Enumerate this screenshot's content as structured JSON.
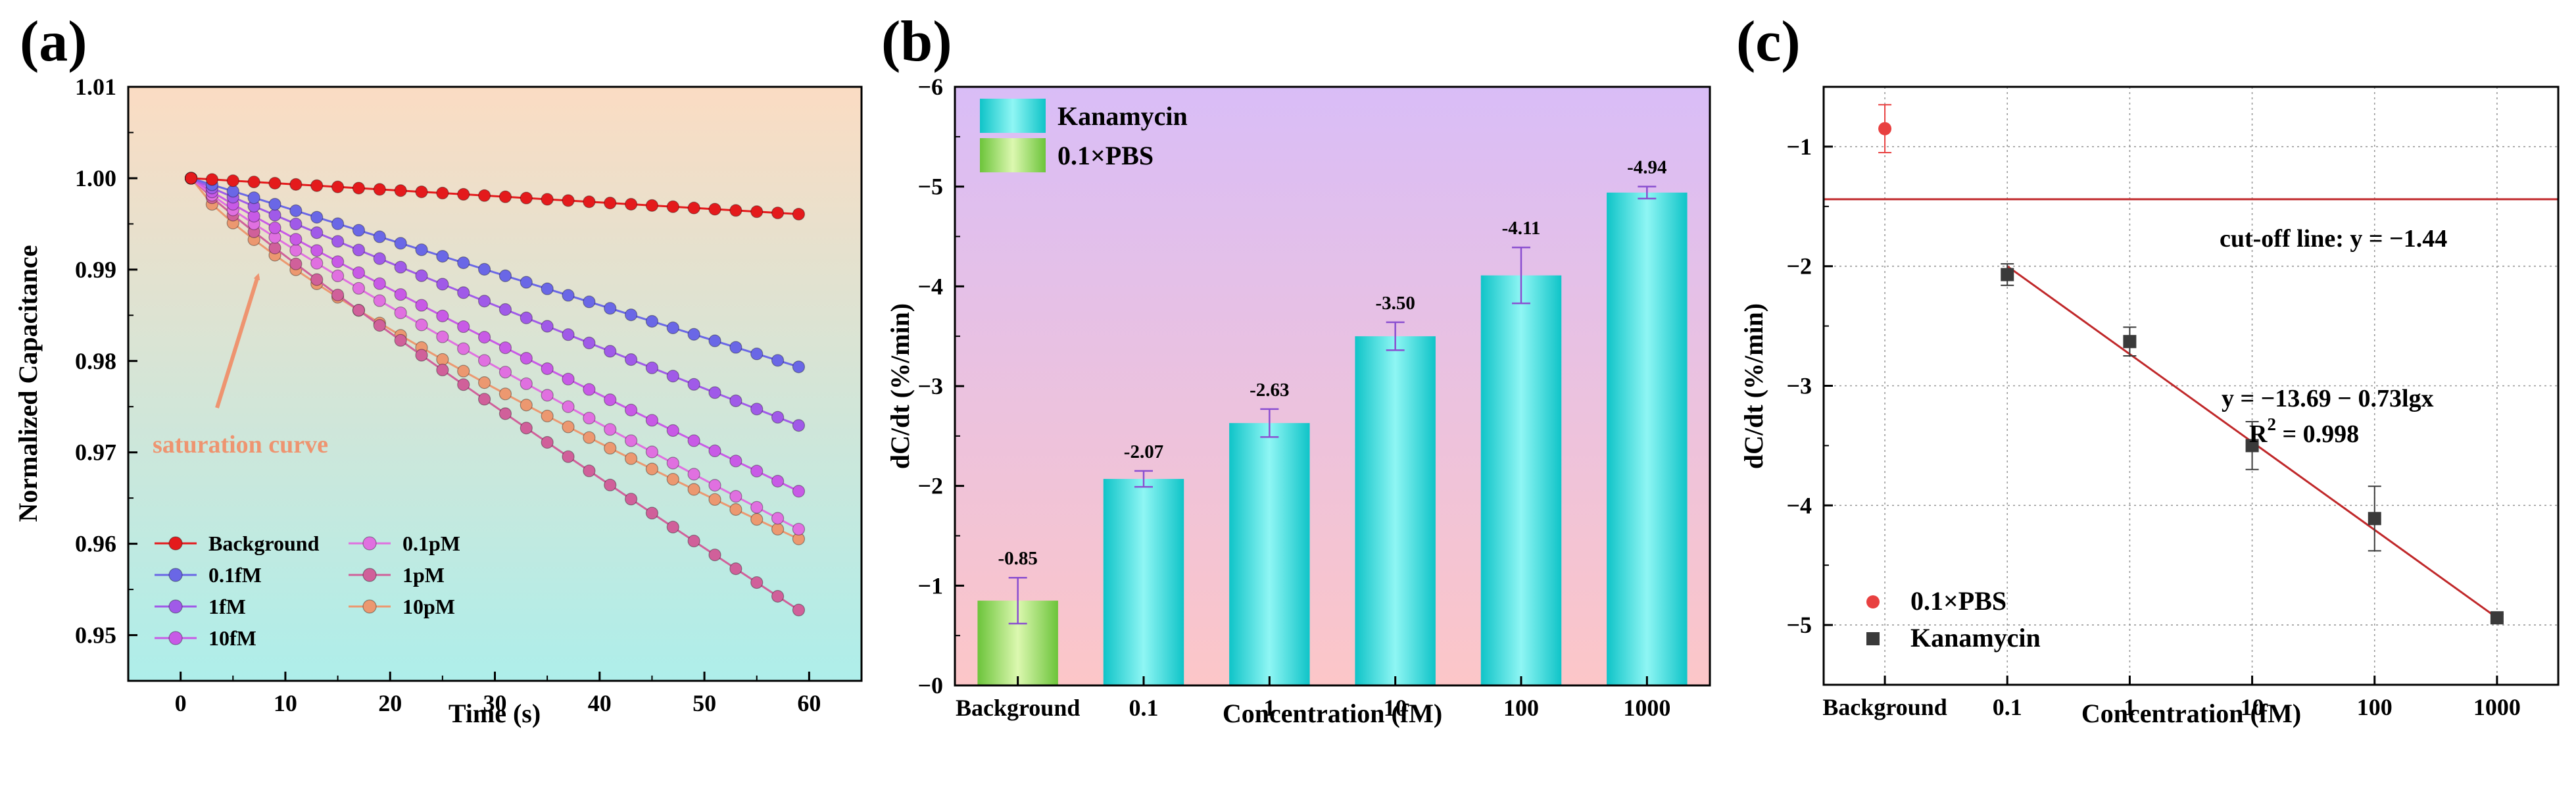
{
  "chart_data": [
    {
      "panel": "(a)",
      "type": "line",
      "xlabel": "Time (s)",
      "ylabel": "Normalized Capacitance",
      "xlim": [
        -5,
        65
      ],
      "ylim": [
        0.945,
        1.01
      ],
      "xticks": [
        0,
        10,
        20,
        30,
        40,
        50,
        60
      ],
      "xtick_labels": [
        "0",
        "10",
        "20",
        "30",
        "40",
        "50",
        "60"
      ],
      "yticks": [
        0.95,
        0.96,
        0.97,
        0.98,
        0.99,
        1.0,
        1.01
      ],
      "ytick_labels": [
        "0.95",
        "0.96",
        "0.97",
        "0.98",
        "0.99",
        "1.00",
        "1.01"
      ],
      "x_start": 1,
      "x_end": 60,
      "point_step": 2,
      "series": [
        {
          "name": "Background",
          "color": "#e41a1c",
          "end": 0.996,
          "power": 1.0
        },
        {
          "name": "0.1fM",
          "color": "#6a67e6",
          "end": 0.979,
          "power": 1.0
        },
        {
          "name": "1fM",
          "color": "#a05ae8",
          "end": 0.9725,
          "power": 0.96
        },
        {
          "name": "10fM",
          "color": "#c85ae6",
          "end": 0.9652,
          "power": 0.93
        },
        {
          "name": "0.1pM",
          "color": "#e070e0",
          "end": 0.961,
          "power": 0.9
        },
        {
          "name": "1pM",
          "color": "#d0609a",
          "end": 0.952,
          "power": 0.92
        },
        {
          "name": "10pM",
          "color": "#ec9870",
          "end": 0.96,
          "power": 0.78
        }
      ],
      "legend_columns": [
        [
          "Background",
          "0.1fM",
          "1fM",
          "10fM"
        ],
        [
          "0.1pM",
          "1pM",
          "10pM"
        ]
      ],
      "annotation": "saturation curve",
      "annotation_color": "#ee9470",
      "background_gradient": [
        "#fbdcc3",
        "#aeeeea"
      ]
    },
    {
      "panel": "(b)",
      "type": "bar",
      "xlabel": "Concentration (fM)",
      "ylabel": "dC/dt (%/min)",
      "categories": [
        "Background",
        "0.1",
        "1",
        "10",
        "100",
        "1000"
      ],
      "values": [
        -0.85,
        -2.07,
        -2.63,
        -3.5,
        -4.11,
        -4.94
      ],
      "value_labels": [
        "-0.85",
        "-2.07",
        "-2.63",
        "-3.50",
        "-4.11",
        "-4.94"
      ],
      "errors": [
        0.23,
        0.08,
        0.14,
        0.14,
        0.28,
        0.06
      ],
      "bar_series": [
        "0.1×PBS",
        "Kanamycin",
        "Kanamycin",
        "Kanamycin",
        "Kanamycin",
        "Kanamycin"
      ],
      "ylim": [
        0,
        -6
      ],
      "yticks": [
        0,
        -1,
        -2,
        -3,
        -4,
        -5,
        -6
      ],
      "ytick_labels": [
        "−0",
        "−1",
        "−2",
        "−3",
        "−4",
        "−5",
        "−6"
      ],
      "legend": [
        {
          "name": "Kanamycin",
          "color": "#22d8d8"
        },
        {
          "name": "0.1×PBS",
          "color": "#8ed35a"
        }
      ],
      "background_gradient": [
        "#d9bdf7",
        "#fcc6c8"
      ]
    },
    {
      "panel": "(c)",
      "type": "scatter",
      "xlabel": "Concentration (fM)",
      "ylabel": "dC/dt (%/min)",
      "categories": [
        "Background",
        "0.1",
        "1",
        "10",
        "100",
        "1000"
      ],
      "ylim": [
        -5.5,
        -0.5
      ],
      "yticks": [
        -1,
        -2,
        -3,
        -4,
        -5
      ],
      "ytick_labels": [
        "−1",
        "−2",
        "−3",
        "−4",
        "−5"
      ],
      "series": [
        {
          "name": "0.1×PBS",
          "color": "#e84040",
          "marker": "circle",
          "points": [
            {
              "category": "Background",
              "y": -0.85,
              "err": 0.2
            }
          ]
        },
        {
          "name": "Kanamycin",
          "color": "#3a3a3a",
          "marker": "square",
          "points": [
            {
              "category": "0.1",
              "y": -2.07,
              "err": 0.09
            },
            {
              "category": "1",
              "y": -2.63,
              "err": 0.12
            },
            {
              "category": "10",
              "y": -3.5,
              "err": 0.2
            },
            {
              "category": "100",
              "y": -4.11,
              "err": 0.27
            },
            {
              "category": "1000",
              "y": -4.94,
              "err": 0.03
            }
          ]
        }
      ],
      "cutoff": {
        "y": -1.44,
        "label": "cut-off line: y = −1.44",
        "color": "#c0282a"
      },
      "fit": {
        "from_category": "0.1",
        "to_category": "1000",
        "y_from": -2.0,
        "y_to": -4.94,
        "color": "#c0282a"
      },
      "fit_equation": "y = −13.69 − 0.73lgx",
      "r2_prefix": "R",
      "r2_sup": "2",
      "r2_value": " = 0.998"
    }
  ]
}
